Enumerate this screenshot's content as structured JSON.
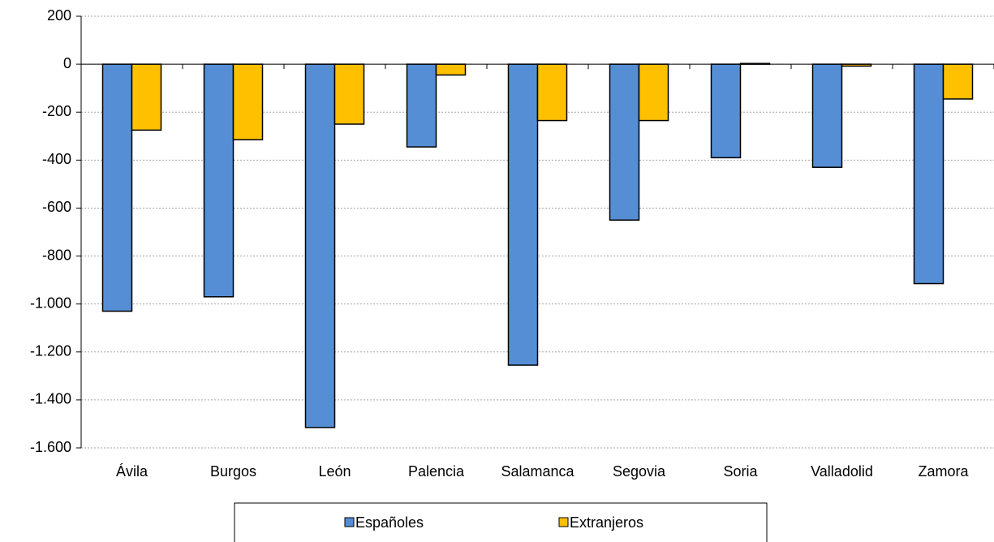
{
  "chart_data": {
    "type": "bar",
    "categories": [
      "Ávila",
      "Burgos",
      "León",
      "Palencia",
      "Salamanca",
      "Segovia",
      "Soria",
      "Valladolid",
      "Zamora"
    ],
    "series": [
      {
        "name": "Españoles",
        "color": "#558ed5",
        "values": [
          -1030,
          -970,
          -1515,
          -345,
          -1255,
          -650,
          -390,
          -430,
          -915
        ]
      },
      {
        "name": "Extranjeros",
        "color": "#ffc000",
        "values": [
          -275,
          -315,
          -250,
          -45,
          -235,
          -235,
          3,
          -8,
          -145
        ]
      }
    ],
    "ylim": [
      -1600,
      200
    ],
    "yticks": [
      {
        "value": -1600,
        "label": "-1.600"
      },
      {
        "value": -1400,
        "label": "-1.400"
      },
      {
        "value": -1200,
        "label": "-1.200"
      },
      {
        "value": -1000,
        "label": "-1.000"
      },
      -800,
      -600,
      -400,
      -200,
      0,
      200
    ],
    "grid": true
  }
}
